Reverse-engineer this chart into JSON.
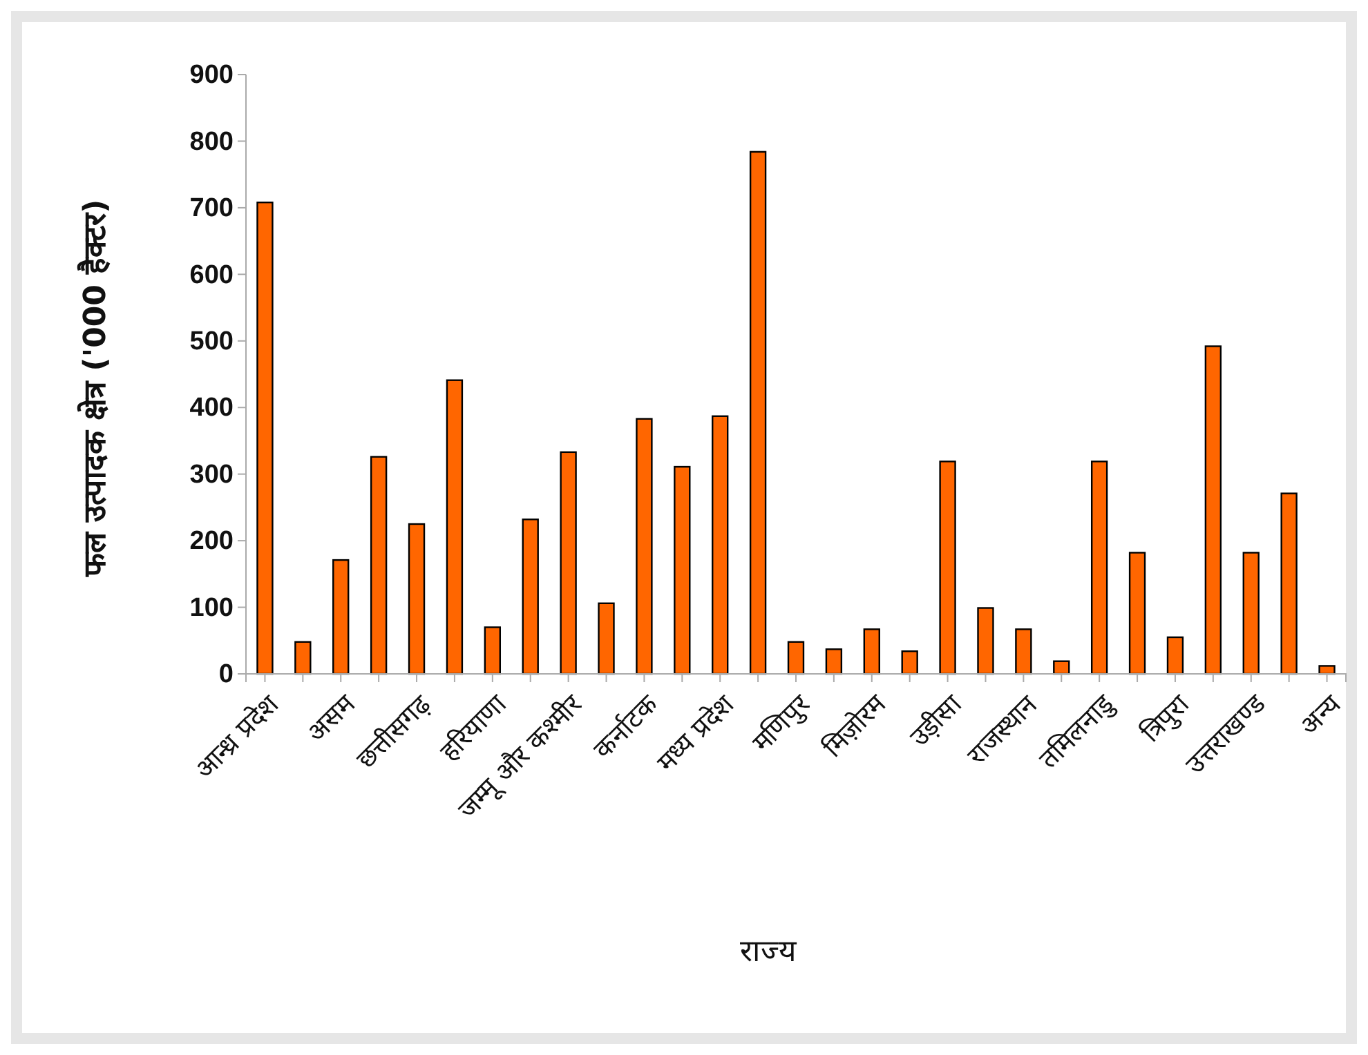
{
  "chart_data": {
    "type": "bar",
    "xlabel": "राज्य",
    "ylabel": "फल उत्पादक क्षेत्र ('000 हैक्टर)",
    "categories": [
      "आन्ध्र प्रदेश",
      null,
      "असम",
      null,
      "छत्तीसगढ़",
      null,
      "हरियाणा",
      null,
      "जम्मू और कश्मीर",
      null,
      "कर्नाटक",
      null,
      "मध्य प्रदेश",
      null,
      "मणिपुर",
      null,
      "मिज़ोरम",
      null,
      "उड़ीसा",
      null,
      "राजस्थान",
      null,
      "तमिलनाडु",
      null,
      "त्रिपुरा",
      null,
      "उत्तराखण्ड",
      null,
      "अन्य"
    ],
    "values": [
      708,
      48,
      171,
      326,
      225,
      441,
      70,
      232,
      333,
      106,
      383,
      311,
      387,
      784,
      48,
      37,
      67,
      34,
      319,
      99,
      67,
      19,
      319,
      182,
      55,
      492,
      182,
      271,
      12
    ],
    "color": "#ff6600",
    "ylim": [
      0,
      900
    ],
    "yticks": [
      0,
      100,
      200,
      300,
      400,
      500,
      600,
      700,
      800,
      900
    ],
    "grid": false
  }
}
